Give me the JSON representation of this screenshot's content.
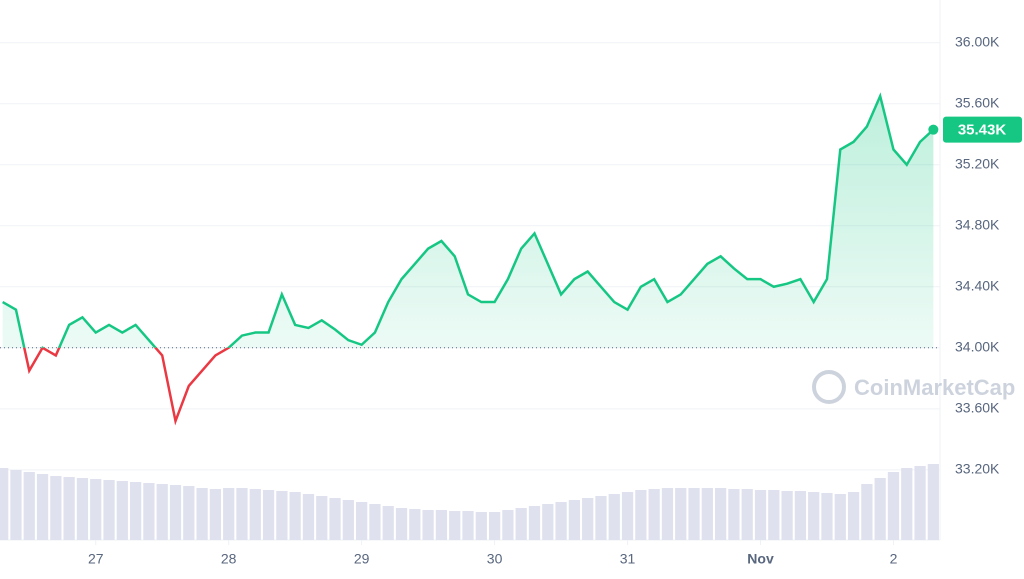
{
  "chart_data": {
    "type": "line",
    "x": [
      26.3,
      26.4,
      26.5,
      26.6,
      26.7,
      26.8,
      26.9,
      27.0,
      27.1,
      27.2,
      27.3,
      27.4,
      27.5,
      27.6,
      27.7,
      27.8,
      27.9,
      28.0,
      28.1,
      28.2,
      28.3,
      28.4,
      28.5,
      28.6,
      28.7,
      28.8,
      28.9,
      29.0,
      29.1,
      29.2,
      29.3,
      29.4,
      29.5,
      29.6,
      29.7,
      29.8,
      29.9,
      30.0,
      30.1,
      30.2,
      30.3,
      30.4,
      30.5,
      30.6,
      30.7,
      30.8,
      30.9,
      31.0,
      31.1,
      31.2,
      31.3,
      31.4,
      31.5,
      31.6,
      31.7,
      31.8,
      31.9,
      32.0,
      32.1,
      32.2,
      32.3,
      32.4,
      32.5,
      32.6,
      32.7,
      32.8,
      32.9,
      33.0,
      33.1,
      33.2,
      33.3
    ],
    "series": [
      {
        "color": "#16c784",
        "values": [
          34300,
          34250,
          33850,
          34000,
          33950,
          34150,
          34200,
          34100,
          34150,
          34100,
          34150,
          34050,
          33950,
          33520,
          33750,
          33850,
          33950,
          34000,
          34080,
          34100,
          34100,
          34350,
          34150,
          34130,
          34180,
          34120,
          34050,
          34020,
          34100,
          34300,
          34450,
          34550,
          34650,
          34700,
          34600,
          34350,
          34300,
          34300,
          34450,
          34650,
          34750,
          34550,
          34350,
          34450,
          34500,
          34400,
          34300,
          34250,
          34400,
          34450,
          34300,
          34350,
          34450,
          34550,
          34600,
          34520,
          34450,
          34450,
          34400,
          34420,
          34450,
          34300,
          34450,
          35300,
          35350,
          35450,
          35650,
          35300,
          35200,
          35350,
          35430
        ]
      }
    ],
    "volume": {
      "color": "#dfe2ee",
      "values": [
        72,
        70,
        68,
        66,
        64,
        63,
        62,
        61,
        60,
        59,
        58,
        57,
        56,
        55,
        54,
        52,
        51,
        52,
        52,
        51,
        50,
        49,
        48,
        46,
        44,
        42,
        40,
        38,
        36,
        34,
        32,
        31,
        30,
        30,
        29,
        29,
        28,
        28,
        30,
        32,
        34,
        36,
        38,
        40,
        42,
        44,
        46,
        48,
        50,
        51,
        52,
        52,
        52,
        52,
        52,
        51,
        51,
        50,
        50,
        49,
        49,
        48,
        47,
        46,
        48,
        56,
        62,
        68,
        72,
        74,
        76
      ]
    },
    "baseline": 34000,
    "down_color": "#ea3943",
    "last_label": {
      "value": 35430,
      "label": "35.43K"
    },
    "watermark": "CoinMarketCap",
    "xlim": [
      26.28,
      33.35
    ],
    "xticks": [
      27,
      28,
      29,
      30,
      31,
      {
        "value": 32,
        "label": "Nov"
      },
      {
        "value": 33,
        "label": "2"
      }
    ],
    "ylim": [
      32740,
      36280
    ],
    "yticks": [
      {
        "value": 33200,
        "label": "33.20K"
      },
      {
        "value": 33600,
        "label": "33.60K"
      },
      {
        "value": 34000,
        "label": "34.00K"
      },
      {
        "value": 34400,
        "label": "34.40K"
      },
      {
        "value": 34800,
        "label": "34.80K"
      },
      {
        "value": 35200,
        "label": "35.20K"
      },
      {
        "value": 35600,
        "label": "35.60K"
      },
      {
        "value": 36000,
        "label": "36.00K"
      }
    ],
    "grid": true
  }
}
